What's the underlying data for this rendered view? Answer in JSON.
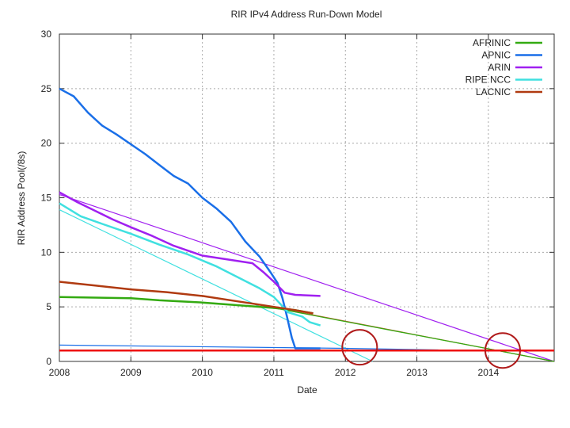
{
  "chart_data": {
    "type": "line",
    "title": "RIR IPv4 Address Run-Down Model",
    "xlabel": "Date",
    "ylabel": "RIR Address Pool(/8s)",
    "xlim": [
      2008,
      2014.92
    ],
    "ylim": [
      0,
      30
    ],
    "x_ticks": [
      "2008",
      "2009",
      "2010",
      "2011",
      "2012",
      "2013",
      "2014"
    ],
    "y_ticks": [
      "0",
      "5",
      "10",
      "15",
      "20",
      "25",
      "30"
    ],
    "grid": true,
    "legend_position": "top-right",
    "series": [
      {
        "name": "AFRINIC",
        "color": "#33aa11",
        "points": [
          [
            2008,
            5.9
          ],
          [
            2008.5,
            5.85
          ],
          [
            2009,
            5.8
          ],
          [
            2009.4,
            5.6
          ],
          [
            2010,
            5.4
          ],
          [
            2010.5,
            5.15
          ],
          [
            2011,
            4.9
          ],
          [
            2011.3,
            4.7
          ],
          [
            2011.55,
            4.4
          ]
        ]
      },
      {
        "name": "APNIC",
        "color": "#1a6fe8",
        "points": [
          [
            2008,
            25
          ],
          [
            2008.2,
            24.3
          ],
          [
            2008.4,
            22.8
          ],
          [
            2008.6,
            21.6
          ],
          [
            2008.8,
            20.8
          ],
          [
            2009,
            19.9
          ],
          [
            2009.2,
            19
          ],
          [
            2009.4,
            18
          ],
          [
            2009.6,
            17
          ],
          [
            2009.8,
            16.3
          ],
          [
            2010,
            15
          ],
          [
            2010.2,
            14
          ],
          [
            2010.4,
            12.8
          ],
          [
            2010.6,
            11
          ],
          [
            2010.8,
            9.6
          ],
          [
            2010.95,
            8.2
          ],
          [
            2011.05,
            7.2
          ],
          [
            2011.12,
            5.8
          ],
          [
            2011.18,
            4.2
          ],
          [
            2011.25,
            2.2
          ],
          [
            2011.3,
            1.2
          ],
          [
            2011.65,
            1.2
          ]
        ]
      },
      {
        "name": "ARIN",
        "color": "#a020f0",
        "points": [
          [
            2008,
            15.5
          ],
          [
            2008.25,
            14.6
          ],
          [
            2008.5,
            13.8
          ],
          [
            2008.75,
            13
          ],
          [
            2009,
            12.3
          ],
          [
            2009.3,
            11.5
          ],
          [
            2009.6,
            10.6
          ],
          [
            2010,
            9.7
          ],
          [
            2010.4,
            9.3
          ],
          [
            2010.7,
            9
          ],
          [
            2010.85,
            8.2
          ],
          [
            2011,
            7.3
          ],
          [
            2011.15,
            6.3
          ],
          [
            2011.3,
            6.1
          ],
          [
            2011.65,
            6
          ]
        ]
      },
      {
        "name": "RIPE NCC",
        "color": "#40e0e0",
        "points": [
          [
            2008,
            14.5
          ],
          [
            2008.3,
            13.3
          ],
          [
            2008.6,
            12.6
          ],
          [
            2009,
            11.7
          ],
          [
            2009.4,
            10.7
          ],
          [
            2009.8,
            9.8
          ],
          [
            2010.2,
            8.7
          ],
          [
            2010.5,
            7.7
          ],
          [
            2010.8,
            6.7
          ],
          [
            2011,
            5.9
          ],
          [
            2011.2,
            4.5
          ],
          [
            2011.4,
            4.1
          ],
          [
            2011.5,
            3.6
          ],
          [
            2011.65,
            3.3
          ]
        ]
      },
      {
        "name": "LACNIC",
        "color": "#b03a10",
        "points": [
          [
            2008,
            7.3
          ],
          [
            2008.5,
            6.95
          ],
          [
            2009,
            6.6
          ],
          [
            2009.5,
            6.35
          ],
          [
            2010,
            6.0
          ],
          [
            2010.5,
            5.5
          ],
          [
            2011,
            5.0
          ],
          [
            2011.3,
            4.7
          ],
          [
            2011.55,
            4.4
          ]
        ]
      }
    ],
    "model_lines": [
      {
        "color": "#a020f0",
        "points": [
          [
            2008,
            15.3
          ],
          [
            2014.92,
            0
          ]
        ]
      },
      {
        "color": "#40e0e0",
        "points": [
          [
            2008,
            13.9
          ],
          [
            2012.38,
            0
          ]
        ]
      },
      {
        "color": "#b05a20",
        "points": [
          [
            2011,
            4.95
          ],
          [
            2014.92,
            0
          ]
        ]
      },
      {
        "color": "#33aa11",
        "points": [
          [
            2011,
            4.9
          ],
          [
            2014.92,
            0
          ]
        ]
      },
      {
        "color": "#1a6fe8",
        "points": [
          [
            2008,
            1.5
          ],
          [
            2012,
            1.2
          ],
          [
            2013.3,
            1.05
          ]
        ]
      }
    ],
    "threshold": {
      "y": 1.0,
      "color": "#ee1111"
    },
    "highlight_circles": [
      {
        "x": 2012.2,
        "y": 1.3,
        "color": "#b01a1a"
      },
      {
        "x": 2014.2,
        "y": 1.0,
        "color": "#b01a1a"
      }
    ]
  }
}
